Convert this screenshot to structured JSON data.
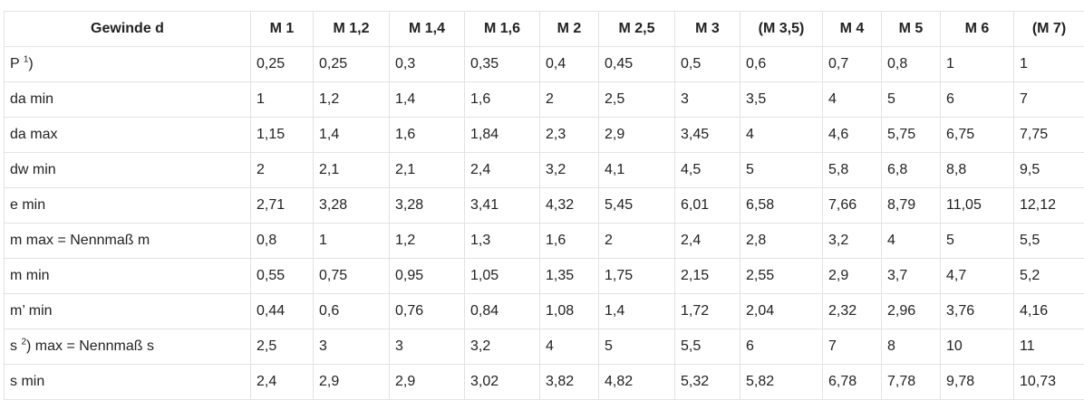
{
  "table": {
    "header_label": "Gewinde d",
    "columns": [
      "M 1",
      "M 1,2",
      "M 1,4",
      "M 1,6",
      "M 2",
      "M 2,5",
      "M 3",
      "(M 3,5)",
      "M 4",
      "M 5",
      "M 6",
      "(M 7)"
    ],
    "rows": [
      {
        "label": "P",
        "sup": "1",
        "label_suffix": ")",
        "values": [
          "0,25",
          "0,25",
          "0,3",
          "0,35",
          "0,4",
          "0,45",
          "0,5",
          "0,6",
          "0,7",
          "0,8",
          "1",
          "1"
        ]
      },
      {
        "label": "da min",
        "values": [
          "1",
          "1,2",
          "1,4",
          "1,6",
          "2",
          "2,5",
          "3",
          "3,5",
          "4",
          "5",
          "6",
          "7"
        ]
      },
      {
        "label": "da max",
        "values": [
          "1,15",
          "1,4",
          "1,6",
          "1,84",
          "2,3",
          "2,9",
          "3,45",
          "4",
          "4,6",
          "5,75",
          "6,75",
          "7,75"
        ]
      },
      {
        "label": "dw min",
        "values": [
          "2",
          "2,1",
          "2,1",
          "2,4",
          "3,2",
          "4,1",
          "4,5",
          "5",
          "5,8",
          "6,8",
          "8,8",
          "9,5"
        ]
      },
      {
        "label": "e min",
        "values": [
          "2,71",
          "3,28",
          "3,28",
          "3,41",
          "4,32",
          "5,45",
          "6,01",
          "6,58",
          "7,66",
          "8,79",
          "11,05",
          "12,12"
        ]
      },
      {
        "label": "m max = Nennmaß m",
        "values": [
          "0,8",
          "1",
          "1,2",
          "1,3",
          "1,6",
          "2",
          "2,4",
          "2,8",
          "3,2",
          "4",
          "5",
          "5,5"
        ]
      },
      {
        "label": "m min",
        "values": [
          "0,55",
          "0,75",
          "0,95",
          "1,05",
          "1,35",
          "1,75",
          "2,15",
          "2,55",
          "2,9",
          "3,7",
          "4,7",
          "5,2"
        ]
      },
      {
        "label": "m’ min",
        "values": [
          "0,44",
          "0,6",
          "0,76",
          "0,84",
          "1,08",
          "1,4",
          "1,72",
          "2,04",
          "2,32",
          "2,96",
          "3,76",
          "4,16"
        ]
      },
      {
        "label": "s",
        "sup": "2",
        "label_suffix": ") max = Nennmaß s",
        "values": [
          "2,5",
          "3",
          "3",
          "3,2",
          "4",
          "5",
          "5,5",
          "6",
          "7",
          "8",
          "10",
          "11"
        ]
      },
      {
        "label": "s min",
        "values": [
          "2,4",
          "2,9",
          "2,9",
          "3,02",
          "3,82",
          "4,82",
          "5,32",
          "5,82",
          "6,78",
          "7,78",
          "9,78",
          "10,73"
        ]
      }
    ]
  }
}
